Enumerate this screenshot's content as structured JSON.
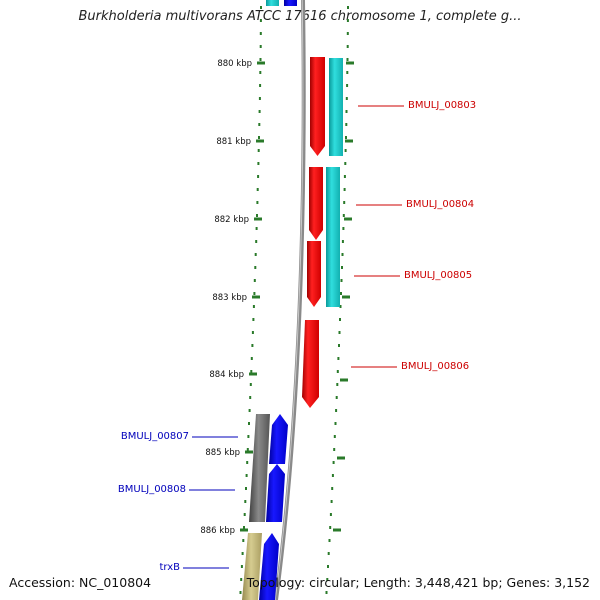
{
  "title": "Burkholderia multivorans ATCC 17616 chromosome 1, complete g...",
  "footer": {
    "accession": "Accession: NC_010804",
    "summary": "Topology: circular; Length: 3,448,421 bp; Genes: 3,152"
  },
  "ticks": [
    {
      "label": "880 kbp"
    },
    {
      "label": "881 kbp"
    },
    {
      "label": "882 kbp"
    },
    {
      "label": "883 kbp"
    },
    {
      "label": "884 kbp"
    },
    {
      "label": "885 kbp"
    },
    {
      "label": "886 kbp"
    }
  ],
  "genes": [
    {
      "label": "BMULJ_00803",
      "strand": "reverse"
    },
    {
      "label": "BMULJ_00804",
      "strand": "reverse"
    },
    {
      "label": "BMULJ_00805",
      "strand": "reverse"
    },
    {
      "label": "BMULJ_00806",
      "strand": "reverse"
    },
    {
      "label": "BMULJ_00807",
      "strand": "forward"
    },
    {
      "label": "BMULJ_00808",
      "strand": "forward"
    },
    {
      "label": "trxB",
      "strand": "forward"
    }
  ],
  "colors": {
    "reverse_gene": "#ff0000",
    "forward_gene": "#0000ff",
    "cds_teal": "#20c8c8",
    "cds_gray": "#707070",
    "cds_khaki": "#c4b878",
    "backbone": "#8a8a8a",
    "tick": "#2a7a2a",
    "reverse_label": "#cc0000",
    "forward_label": "#0000bb"
  }
}
